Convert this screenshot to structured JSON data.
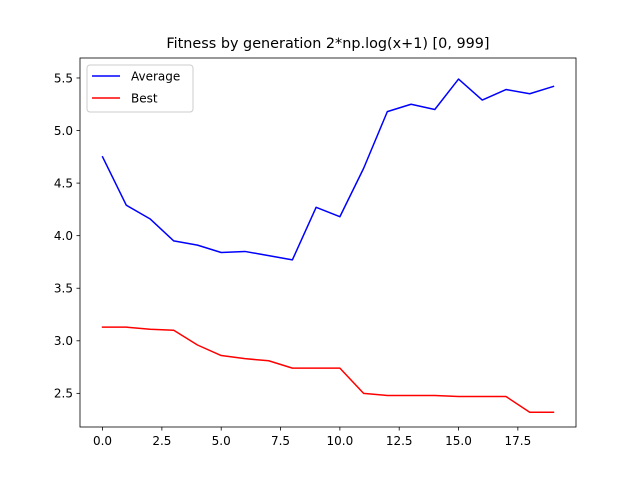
{
  "chart_data": {
    "type": "line",
    "title": "Fitness by generation 2*np.log(x+1) [0, 999]",
    "xlabel": "",
    "ylabel": "",
    "x": [
      0,
      1,
      2,
      3,
      4,
      5,
      6,
      7,
      8,
      9,
      10,
      11,
      12,
      13,
      14,
      15,
      16,
      17,
      18,
      19
    ],
    "xlim": [
      -0.95,
      19.95
    ],
    "ylim": [
      2.18,
      5.69
    ],
    "xticks": [
      0.0,
      2.5,
      5.0,
      7.5,
      10.0,
      12.5,
      15.0,
      17.5
    ],
    "xtick_labels": [
      "0.0",
      "2.5",
      "5.0",
      "7.5",
      "10.0",
      "12.5",
      "15.0",
      "17.5"
    ],
    "yticks": [
      2.5,
      3.0,
      3.5,
      4.0,
      4.5,
      5.0,
      5.5
    ],
    "ytick_labels": [
      "2.5",
      "3.0",
      "3.5",
      "4.0",
      "4.5",
      "5.0",
      "5.5"
    ],
    "grid": false,
    "legend_position": "top-left",
    "series": [
      {
        "name": "Average",
        "color": "#0000ff",
        "values": [
          4.75,
          4.29,
          4.16,
          3.95,
          3.91,
          3.84,
          3.85,
          3.81,
          3.77,
          4.27,
          4.18,
          4.64,
          5.18,
          5.25,
          5.2,
          5.49,
          5.29,
          5.39,
          5.35,
          5.42
        ]
      },
      {
        "name": "Best",
        "color": "#ff0000",
        "values": [
          3.13,
          3.13,
          3.11,
          3.1,
          2.96,
          2.86,
          2.83,
          2.81,
          2.74,
          2.74,
          2.74,
          2.5,
          2.48,
          2.48,
          2.48,
          2.47,
          2.47,
          2.47,
          2.32,
          2.32
        ]
      }
    ]
  }
}
